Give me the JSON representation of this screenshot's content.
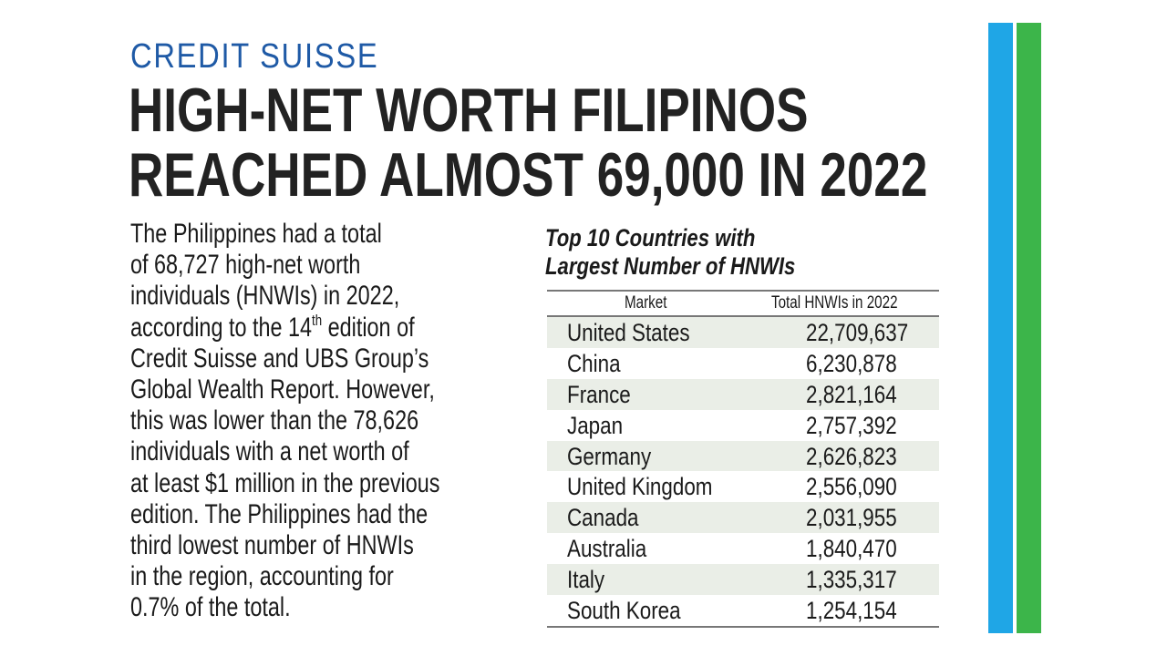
{
  "kicker": "CREDIT SUISSE",
  "headline": {
    "line1": "HIGH-NET WORTH FILIPINOS",
    "line2": "REACHED ALMOST 69,000 IN 2022"
  },
  "body": {
    "lines": [
      "The Philippines had a total",
      "of 68,727 high-net worth",
      "individuals (HNWIs) in 2022,",
      "according to the 14",
      "Credit Suisse and UBS Group’s",
      "Global Wealth Report. However,",
      "this was lower than the 78,626",
      "individuals with a net worth of",
      "at least $1 million in the previous",
      "edition. The Philippines had the",
      "third lowest number of HNWIs",
      "in the region, accounting for",
      "0.7% of the total."
    ],
    "superscript": "th",
    "line4_suffix": " edition of"
  },
  "table": {
    "title_line1": "Top 10 Countries with",
    "title_line2": "Largest Number of HNWIs",
    "header_market": "Market",
    "header_total": "Total HNWIs in 2022",
    "rows": [
      {
        "market": "United States",
        "total": "22,709,637"
      },
      {
        "market": "China",
        "total": "6,230,878"
      },
      {
        "market": "France",
        "total": "2,821,164"
      },
      {
        "market": "Japan",
        "total": "2,757,392"
      },
      {
        "market": "Germany",
        "total": "2,626,823"
      },
      {
        "market": "United Kingdom",
        "total": "2,556,090"
      },
      {
        "market": "Canada",
        "total": "2,031,955"
      },
      {
        "market": "Australia",
        "total": "1,840,470"
      },
      {
        "market": "Italy",
        "total": "1,335,317"
      },
      {
        "market": "South Korea",
        "total": "1,254,154"
      }
    ]
  },
  "colors": {
    "kicker": "#1f5aa6",
    "stripe_blue": "#1fa6e6",
    "stripe_green": "#3cb54a",
    "row_shade": "#eaeee7"
  }
}
